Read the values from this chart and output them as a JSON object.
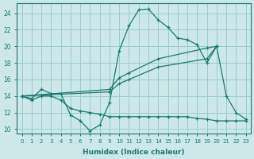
{
  "xlabel": "Humidex (Indice chaleur)",
  "color": "#1a7a6e",
  "bg_color": "#cce8e8",
  "grid_color": "#99cccc",
  "ylim": [
    9.5,
    25.2
  ],
  "yticks": [
    10,
    12,
    14,
    16,
    18,
    20,
    22,
    24
  ],
  "xlim": [
    -0.5,
    23.5
  ],
  "xticks": [
    0,
    1,
    2,
    3,
    4,
    5,
    6,
    7,
    8,
    9,
    10,
    11,
    12,
    13,
    14,
    15,
    16,
    17,
    18,
    19,
    20,
    21,
    22,
    23
  ],
  "wave_x": [
    0,
    1,
    2,
    3,
    4,
    5,
    6,
    7,
    8,
    9,
    10,
    11,
    12,
    13,
    14,
    15,
    16,
    17,
    18,
    19,
    20,
    21,
    22,
    23
  ],
  "wave_y": [
    14.0,
    13.7,
    14.8,
    14.3,
    14.3,
    11.7,
    11.0,
    9.8,
    10.5,
    13.2,
    19.5,
    22.5,
    24.4,
    24.5,
    23.2,
    22.3,
    21.0,
    20.8,
    20.2,
    18.0,
    20.0,
    14.0,
    12.0,
    11.2
  ],
  "low_x": [
    0,
    1,
    2,
    3,
    4,
    5,
    6,
    7,
    8,
    9,
    10,
    11,
    12,
    13,
    14,
    15,
    16,
    17,
    18,
    19,
    20,
    21,
    22,
    23
  ],
  "low_y": [
    14.0,
    13.5,
    14.0,
    14.0,
    13.5,
    12.5,
    12.2,
    12.0,
    11.8,
    11.5,
    11.5,
    11.5,
    11.5,
    11.5,
    11.5,
    11.5,
    11.5,
    11.5,
    11.3,
    11.2,
    11.0,
    11.0,
    11.0,
    11.0
  ],
  "upper_x": [
    0,
    9,
    10,
    11,
    14,
    19,
    20
  ],
  "upper_y": [
    14.0,
    14.8,
    16.2,
    16.8,
    18.5,
    19.8,
    20.0
  ],
  "mid_x": [
    0,
    9,
    10,
    11,
    14,
    19,
    20
  ],
  "mid_y": [
    14.0,
    14.5,
    15.5,
    16.0,
    17.5,
    18.5,
    20.0
  ]
}
